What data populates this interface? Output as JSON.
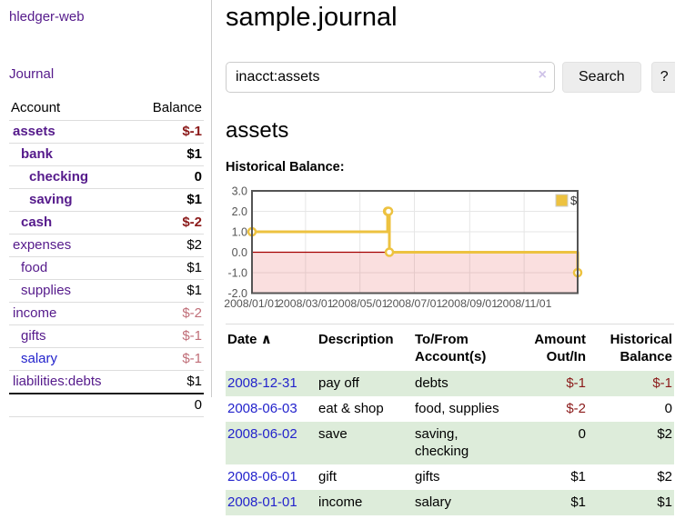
{
  "app": {
    "title": "hledger-web"
  },
  "sidebar": {
    "journal_link": "Journal",
    "accounts": {
      "header_account": "Account",
      "header_balance": "Balance",
      "rows": [
        {
          "account": "assets",
          "depth": 0,
          "bold": true,
          "link_color": "purple",
          "balance": "$-1",
          "balance_style": "neg"
        },
        {
          "account": "bank",
          "depth": 1,
          "bold": true,
          "link_color": "purple",
          "balance": "$1",
          "balance_style": "plain"
        },
        {
          "account": "checking",
          "depth": 2,
          "bold": true,
          "link_color": "purple",
          "balance": "0",
          "balance_style": "plain"
        },
        {
          "account": "saving",
          "depth": 2,
          "bold": true,
          "link_color": "purple",
          "balance": "$1",
          "balance_style": "plain"
        },
        {
          "account": "cash",
          "depth": 1,
          "bold": true,
          "link_color": "purple",
          "balance": "$-2",
          "balance_style": "neg"
        },
        {
          "account": "expenses",
          "depth": 0,
          "bold": false,
          "link_color": "purple",
          "balance": "$2",
          "balance_style": "plain"
        },
        {
          "account": "food",
          "depth": 1,
          "bold": false,
          "link_color": "purple",
          "balance": "$1",
          "balance_style": "plain"
        },
        {
          "account": "supplies",
          "depth": 1,
          "bold": false,
          "link_color": "purple",
          "balance": "$1",
          "balance_style": "plain"
        },
        {
          "account": "income",
          "depth": 0,
          "bold": false,
          "link_color": "purple",
          "balance": "$-2",
          "balance_style": "neglight"
        },
        {
          "account": "gifts",
          "depth": 1,
          "bold": false,
          "link_color": "purple",
          "balance": "$-1",
          "balance_style": "neglight"
        },
        {
          "account": "salary",
          "depth": 1,
          "bold": false,
          "link_color": "blue",
          "balance": "$-1",
          "balance_style": "neglight"
        },
        {
          "account": "liabilities:debts",
          "depth": 0,
          "bold": false,
          "link_color": "purple",
          "balance": "$1",
          "balance_style": "plain"
        }
      ],
      "total": "0"
    }
  },
  "main": {
    "title": "sample.journal",
    "search": {
      "value": "inacct:assets",
      "clear": "×",
      "button_label": "Search",
      "help_label": "?"
    },
    "heading": "assets",
    "chart_title": "Historical Balance:",
    "register": {
      "headers": {
        "date": "Date",
        "sort_arrow": "∧",
        "desc": "Description",
        "acct_line1": "To/From",
        "acct_line2": "Account(s)",
        "amt_line1": "Amount",
        "amt_line2": "Out/In",
        "bal_line1": "Historical",
        "bal_line2": "Balance"
      },
      "rows": [
        {
          "date": "2008-12-31",
          "desc": "pay off",
          "accts": "debts",
          "amount": "$-1",
          "amount_neg": true,
          "balance": "$-1",
          "balance_neg": true,
          "shaded": true
        },
        {
          "date": "2008-06-03",
          "desc": "eat & shop",
          "accts": "food, supplies",
          "amount": "$-2",
          "amount_neg": true,
          "balance": "0",
          "balance_neg": false,
          "shaded": false
        },
        {
          "date": "2008-06-02",
          "desc": "save",
          "accts": "saving, checking",
          "amount": "0",
          "amount_neg": false,
          "balance": "$2",
          "balance_neg": false,
          "shaded": true
        },
        {
          "date": "2008-06-01",
          "desc": "gift",
          "accts": "gifts",
          "amount": "$1",
          "amount_neg": false,
          "balance": "$2",
          "balance_neg": false,
          "shaded": false
        },
        {
          "date": "2008-01-01",
          "desc": "income",
          "accts": "salary",
          "amount": "$1",
          "amount_neg": false,
          "balance": "$1",
          "balance_neg": false,
          "shaded": true
        }
      ]
    }
  },
  "colors": {
    "link_purple": "#551a8b",
    "link_blue": "#2323cc",
    "negative_strong": "#8b1a1a",
    "negative_light": "#c06e78",
    "row_shade_green": "#ddecda",
    "series_gold": "#edc240",
    "zero_line_red": "#a40000",
    "negative_region_pink": "#f8dada",
    "grid_line": "#e6e6e6",
    "chart_border": "#545454"
  },
  "chart_data": {
    "type": "line",
    "style": "steps",
    "title": "Historical Balance",
    "legend": [
      {
        "label": "$",
        "color": "#edc240"
      }
    ],
    "legend_position": "top-right",
    "x": [
      "2008-01-01",
      "2008-06-01",
      "2008-06-02",
      "2008-06-03",
      "2008-12-31"
    ],
    "series": [
      {
        "name": "$",
        "values": [
          1,
          2,
          2,
          0,
          -1
        ]
      }
    ],
    "x_range": [
      "2008-01-01",
      "2008-12-31"
    ],
    "ylim": [
      -2.0,
      3.0
    ],
    "yticks": [
      "3.0",
      "2.0",
      "1.0",
      "0.0",
      "-1.0",
      "-2.0"
    ],
    "xticks": [
      "2008/01/01",
      "2008/03/01",
      "2008/05/01",
      "2008/07/01",
      "2008/09/01",
      "2008/11/01"
    ],
    "grid": true,
    "negative_region_below_zero": true
  }
}
